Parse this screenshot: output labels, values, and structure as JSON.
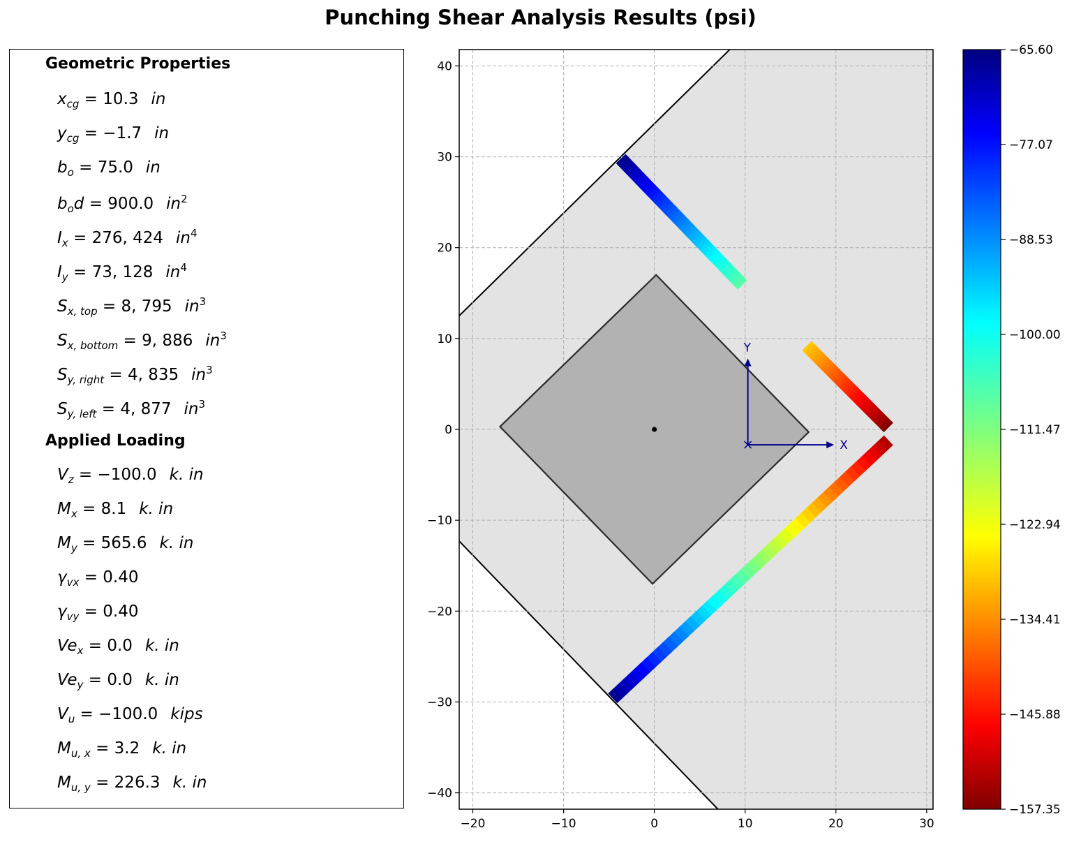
{
  "title": "Punching Shear Analysis Results (psi)",
  "panel": {
    "geometry_heading": "Geometric Properties",
    "geometry": [
      {
        "sym": "x",
        "sub": "cg",
        "value": "= 10.3",
        "unit": "in",
        "pow": ""
      },
      {
        "sym": "y",
        "sub": "cg",
        "value": "= −1.7",
        "unit": "in",
        "pow": ""
      },
      {
        "sym": "b",
        "sub": "o",
        "value": "= 75.0",
        "unit": "in",
        "pow": ""
      },
      {
        "sym": "b",
        "sub": "o",
        "sym2": "d",
        "value": "= 900.0",
        "unit": "in",
        "pow": "2"
      },
      {
        "sym": "I",
        "sub": "x",
        "value": "= 276, 424",
        "unit": "in",
        "pow": "4"
      },
      {
        "sym": "I",
        "sub": "y",
        "value": "= 73, 128",
        "unit": "in",
        "pow": "4"
      },
      {
        "sym": "S",
        "sub": "x, top",
        "value": "= 8, 795",
        "unit": "in",
        "pow": "3"
      },
      {
        "sym": "S",
        "sub": "x, bottom",
        "value": "= 9, 886",
        "unit": "in",
        "pow": "3"
      },
      {
        "sym": "S",
        "sub": "y, right",
        "value": "= 4, 835",
        "unit": "in",
        "pow": "3"
      },
      {
        "sym": "S",
        "sub": "y, left",
        "value": "= 4, 877",
        "unit": "in",
        "pow": "3"
      }
    ],
    "loading_heading": "Applied Loading",
    "loading": [
      {
        "sym": "V",
        "sub": "z",
        "value": "= −100.0",
        "unit": "k. in",
        "pow": ""
      },
      {
        "sym": "M",
        "sub": "x",
        "value": "= 8.1",
        "unit": "k. in",
        "pow": ""
      },
      {
        "sym": "M",
        "sub": "y",
        "value": "= 565.6",
        "unit": "k. in",
        "pow": ""
      },
      {
        "sym": "γ",
        "sub": "vx",
        "value": "= 0.40",
        "unit": "",
        "pow": ""
      },
      {
        "sym": "γ",
        "sub": "vy",
        "value": "= 0.40",
        "unit": "",
        "pow": ""
      },
      {
        "sym": "Ve",
        "sub": "x",
        "value": "= 0.0",
        "unit": "k. in",
        "pow": ""
      },
      {
        "sym": "Ve",
        "sub": "y",
        "value": "= 0.0",
        "unit": "k. in",
        "pow": ""
      },
      {
        "sym": "V",
        "sub": "u",
        "value": "= −100.0",
        "unit": "kips",
        "pow": ""
      },
      {
        "sym": "M",
        "sub": "u, x",
        "value": "= 3.2",
        "unit": "k. in",
        "pow": ""
      },
      {
        "sym": "M",
        "sub": "u, y",
        "value": "= 226.3",
        "unit": "k. in",
        "pow": ""
      }
    ]
  },
  "chart_data": {
    "type": "scatter",
    "xlim": [
      -21.5,
      30.7
    ],
    "ylim": [
      -41.8,
      41.8
    ],
    "xticks": [
      -20,
      -10,
      0,
      10,
      20,
      30
    ],
    "yticks": [
      -40,
      -30,
      -20,
      -10,
      0,
      10,
      20,
      30,
      40
    ],
    "grid": true,
    "slab_outline": [
      [
        -21.5,
        12.5
      ],
      [
        8.3,
        41.8
      ],
      [
        30.7,
        41.8
      ],
      [
        30.7,
        -41.8
      ],
      [
        7,
        -41.8
      ],
      [
        -21.5,
        -12.3
      ]
    ],
    "column_outline": [
      [
        -17,
        0.3
      ],
      [
        0.2,
        17
      ],
      [
        17,
        -0.3
      ],
      [
        -0.2,
        -17
      ]
    ],
    "column_center": [
      0,
      0
    ],
    "local_axes": {
      "origin": [
        10.3,
        -1.7
      ],
      "x_tip": [
        19.8,
        -1.7
      ],
      "y_tip": [
        10.3,
        7.8
      ],
      "x_label": "X",
      "y_label": "Y",
      "color": "#00008b"
    },
    "critical_section_segments": [
      {
        "from": [
          -3.7,
          29.8
        ],
        "to": [
          9.7,
          15.9
        ],
        "stress_from": -66.0,
        "stress_to": -108.0
      },
      {
        "from": [
          16.8,
          9.2
        ],
        "to": [
          25.8,
          0.2
        ],
        "stress_from": -129.0,
        "stress_to": -157.3
      },
      {
        "from": [
          25.8,
          -1.2
        ],
        "to": [
          -4.6,
          -29.6
        ],
        "stress_from": -154.0,
        "stress_to": -66.0
      }
    ],
    "colorbar": {
      "colormap": "jet",
      "min": -157.35,
      "max": -65.6,
      "ticks": [
        "−65.60",
        "−77.07",
        "−88.53",
        "−100.00",
        "−111.47",
        "−122.94",
        "−134.41",
        "−145.88",
        "−157.35"
      ]
    }
  }
}
